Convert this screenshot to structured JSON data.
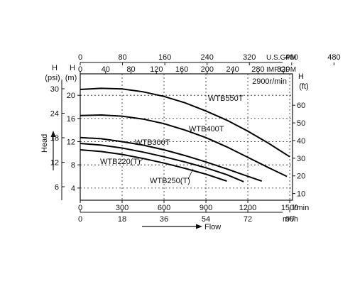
{
  "chart_data": {
    "type": "line",
    "title": "",
    "speed_label": "2900r/min",
    "x_axes": {
      "lpm": {
        "unit": "l/min",
        "ticks": [
          "0",
          "300",
          "600",
          "900",
          "1200",
          "1500"
        ]
      },
      "m3h": {
        "unit": "m³/h",
        "ticks": [
          "0",
          "18",
          "36",
          "54",
          "72",
          "90"
        ]
      },
      "usgpm": {
        "unit": "U.S.GPM",
        "ticks": [
          "0",
          "80",
          "160",
          "240",
          "320",
          "400",
          "480"
        ]
      },
      "impgpm": {
        "unit": "IMP.GPM",
        "ticks": [
          "0",
          "40",
          "80",
          "120",
          "160",
          "200",
          "240",
          "280",
          "320",
          "360",
          "400"
        ]
      }
    },
    "y_axes": {
      "psi": {
        "unit_top": "H",
        "unit_bottom": "(psi)",
        "ticks": [
          "6",
          "12",
          "18",
          "24",
          "30"
        ]
      },
      "m": {
        "unit_top": "H",
        "unit_bottom": "(m)",
        "ticks": [
          "4",
          "8",
          "12",
          "16",
          "20"
        ]
      },
      "ft": {
        "unit_top": "H",
        "unit_bottom": "(ft)",
        "ticks": [
          "10",
          "20",
          "30",
          "40",
          "50",
          "60"
        ]
      }
    },
    "xlabel": "Flow",
    "ylabel": "Head",
    "xlim": [
      0,
      1520
    ],
    "ylim": [
      1.9,
      23.7
    ],
    "series": [
      {
        "name": "WTB550T",
        "points": [
          [
            0,
            21.0
          ],
          [
            150,
            21.2
          ],
          [
            300,
            21.1
          ],
          [
            450,
            20.6
          ],
          [
            600,
            19.8
          ],
          [
            750,
            18.7
          ],
          [
            900,
            17.3
          ],
          [
            1050,
            15.7
          ],
          [
            1200,
            13.8
          ],
          [
            1350,
            11.7
          ],
          [
            1500,
            9.4
          ]
        ]
      },
      {
        "name": "WTB400T",
        "points": [
          [
            0,
            16.5
          ],
          [
            150,
            16.6
          ],
          [
            300,
            16.4
          ],
          [
            450,
            15.9
          ],
          [
            600,
            15.1
          ],
          [
            750,
            14.0
          ],
          [
            900,
            12.7
          ],
          [
            1050,
            11.1
          ],
          [
            1200,
            9.3
          ],
          [
            1350,
            7.5
          ],
          [
            1480,
            6.0
          ]
        ]
      },
      {
        "name": "WTB300T",
        "points": [
          [
            0,
            12.7
          ],
          [
            150,
            12.5
          ],
          [
            300,
            12.0
          ],
          [
            450,
            11.4
          ],
          [
            600,
            10.6
          ],
          [
            750,
            9.6
          ],
          [
            900,
            8.5
          ],
          [
            1050,
            7.3
          ],
          [
            1180,
            6.2
          ],
          [
            1300,
            5.2
          ]
        ]
      },
      {
        "name": "WTB220(T)",
        "points": [
          [
            0,
            11.7
          ],
          [
            150,
            11.4
          ],
          [
            300,
            10.9
          ],
          [
            450,
            10.2
          ],
          [
            600,
            9.4
          ],
          [
            750,
            8.5
          ],
          [
            900,
            7.5
          ],
          [
            1050,
            6.3
          ],
          [
            1170,
            5.1
          ]
        ]
      },
      {
        "name": "WTB250(T)",
        "points": [
          [
            0,
            10.6
          ],
          [
            150,
            10.3
          ],
          [
            300,
            9.8
          ],
          [
            450,
            9.1
          ],
          [
            600,
            8.3
          ],
          [
            750,
            7.4
          ],
          [
            900,
            6.4
          ],
          [
            1050,
            5.2
          ]
        ]
      }
    ]
  }
}
